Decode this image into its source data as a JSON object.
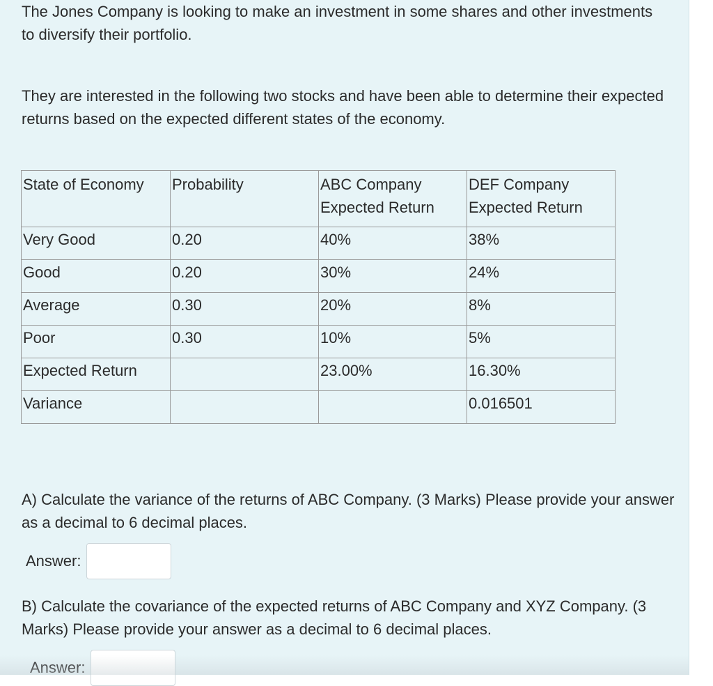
{
  "intro": "The Jones Company is looking to make an investment in some shares and other investments to diversify their portfolio.",
  "description": "They are interested in the following two stocks and have been able to determine their expected returns based on the expected different states of the economy.",
  "table": {
    "headers": [
      "State of Economy",
      "Probability",
      "ABC Company Expected Return",
      "DEF Company Expected Return"
    ],
    "rows": [
      [
        "Very Good",
        "0.20",
        "40%",
        "38%"
      ],
      [
        "Good",
        "0.20",
        "30%",
        "24%"
      ],
      [
        "Average",
        "0.30",
        "20%",
        "8%"
      ],
      [
        "Poor",
        "0.30",
        "10%",
        "5%"
      ],
      [
        "Expected Return",
        "",
        "23.00%",
        "16.30%"
      ],
      [
        "Variance",
        "",
        "",
        "0.016501"
      ]
    ]
  },
  "question_a": {
    "text": "A)   Calculate the variance of the returns of ABC Company. (3 Marks) Please provide your answer as a decimal to 6 decimal places.",
    "answer_label": "Answer:",
    "answer_value": ""
  },
  "question_b": {
    "text": "B) Calculate the covariance of the expected returns of ABC Company and XYZ Company. (3 Marks) Please provide your answer as a decimal to 6 decimal places.",
    "answer_label": "Answer:",
    "answer_value": ""
  }
}
